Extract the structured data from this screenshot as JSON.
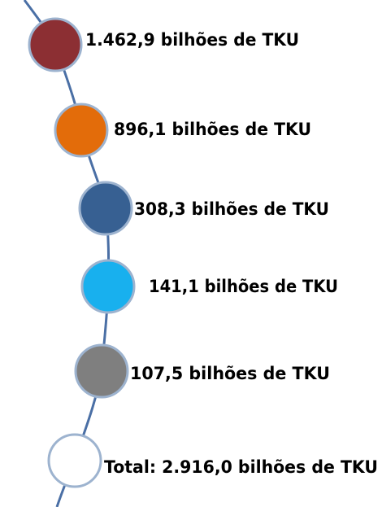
{
  "items": [
    {
      "label": "1.462,9 bilhões de TKU",
      "color": "#8c2f33"
    },
    {
      "label": "896,1 bilhões de TKU",
      "color": "#e36c0a"
    },
    {
      "label": "308,3 bilhões de TKU",
      "color": "#376092"
    },
    {
      "label": "141,1 bilhões de TKU",
      "color": "#18b0ee"
    },
    {
      "label": "107,5 bilhões de TKU",
      "color": "#7f7f7f"
    },
    {
      "label": "Total: 2.916,0 bilhões de TKU",
      "color": "#ffffff"
    }
  ]
}
